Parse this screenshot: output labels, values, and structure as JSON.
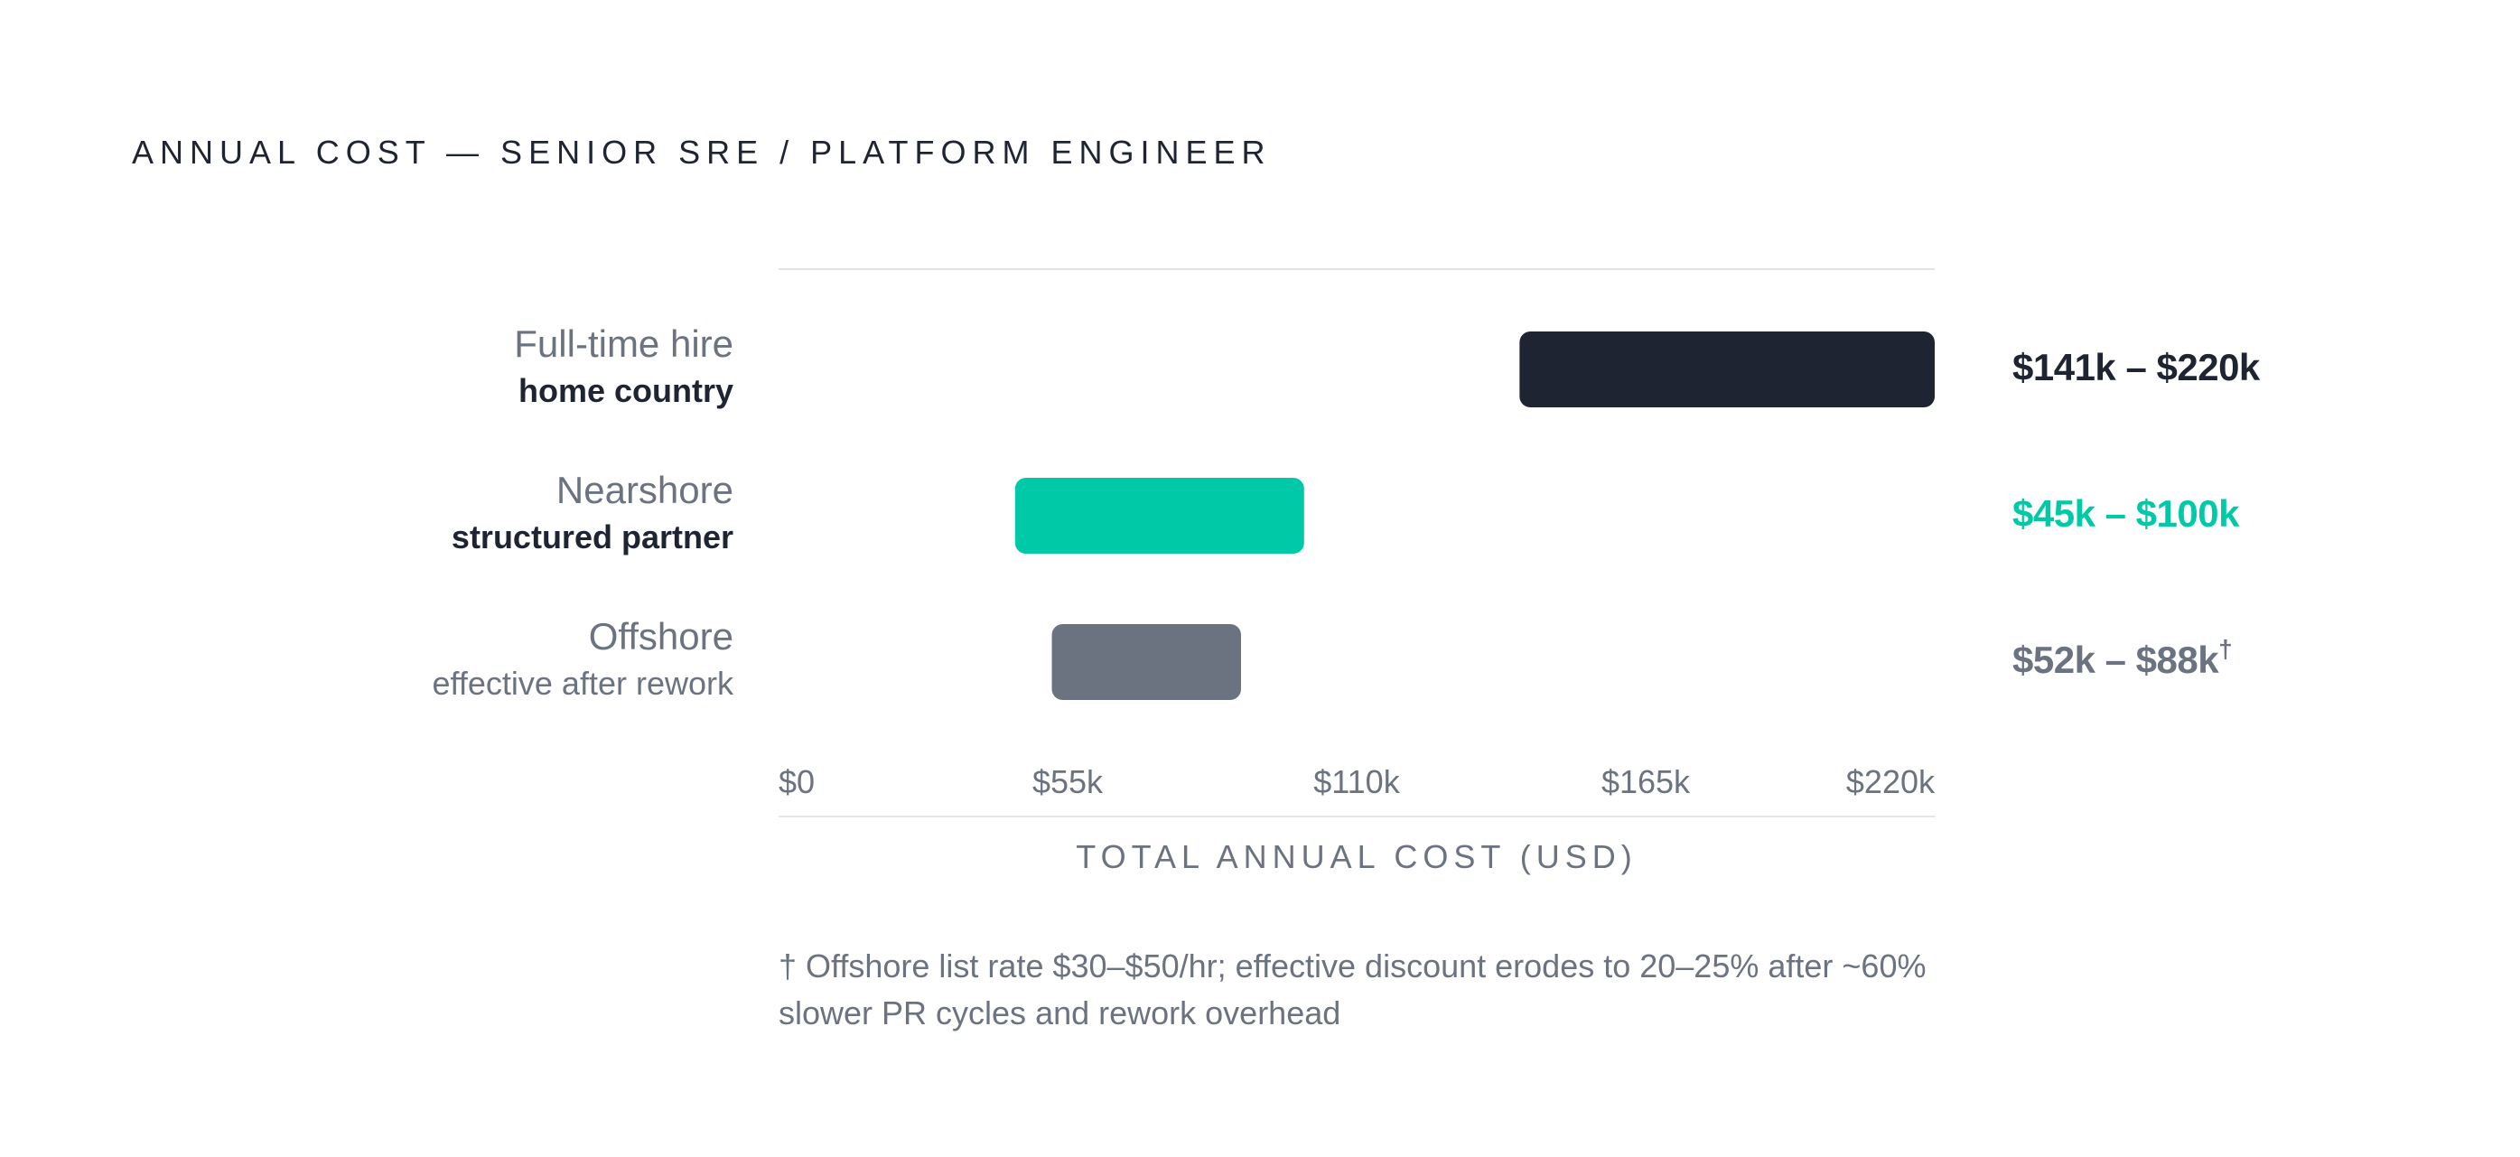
{
  "title": "ANNUAL COST — SENIOR SRE / PLATFORM ENGINEER",
  "chart_data": {
    "type": "bar",
    "orientation": "horizontal-range",
    "categories": [
      "Full-time hire",
      "Nearshore",
      "Offshore"
    ],
    "rows": [
      {
        "name": "Full-time hire",
        "subtitle": "home country",
        "subtitle_style": "bold",
        "low": 141,
        "high": 220,
        "label": "$141k – $220k",
        "label_mark": "",
        "color": "#1e2432"
      },
      {
        "name": "Nearshore",
        "subtitle": "structured partner",
        "subtitle_style": "bold",
        "low": 45,
        "high": 100,
        "label": "$45k – $100k",
        "label_mark": "",
        "color": "#00c9a7"
      },
      {
        "name": "Offshore",
        "subtitle": "effective after rework",
        "subtitle_style": "light",
        "low": 52,
        "high": 88,
        "label": "$52k – $88k",
        "label_mark": "†",
        "color": "#6b7280"
      }
    ],
    "x_ticks": [
      0,
      55,
      110,
      165,
      220
    ],
    "x_tick_labels": [
      "$0",
      "$55k",
      "$110k",
      "$165k",
      "$220k"
    ],
    "xlim": [
      0,
      220
    ],
    "xlabel": "TOTAL ANNUAL COST (USD)",
    "units": "thousands USD",
    "grid": false
  },
  "footnote": "† Offshore list rate $30–$50/hr; effective discount erodes to 20–25% after ~60% slower PR cycles and rework overhead"
}
